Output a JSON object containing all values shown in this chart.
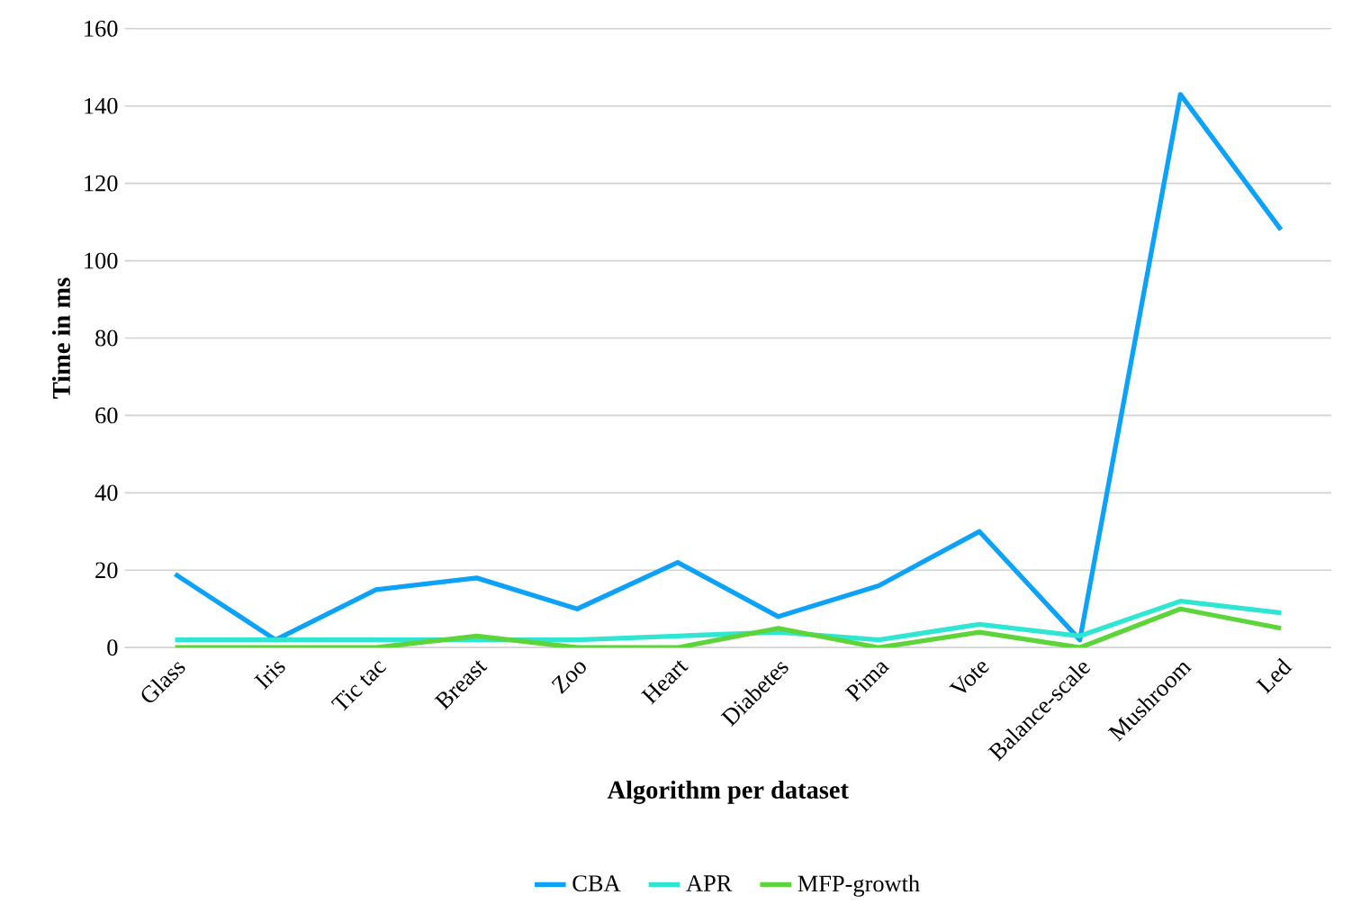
{
  "chart_data": {
    "type": "line",
    "xlabel": "Algorithm per dataset",
    "ylabel": "Time in ms",
    "categories": [
      "Glass",
      "Iris",
      "Tic tac",
      "Breast",
      "Zoo",
      "Heart",
      "Diabetes",
      "Pima",
      "Vote",
      "Balance-scale",
      "Mushroom",
      "Led"
    ],
    "series": [
      {
        "name": "CBA",
        "color": "#0ca2f8",
        "values": [
          19,
          2,
          15,
          18,
          10,
          22,
          8,
          16,
          30,
          2,
          143,
          108
        ]
      },
      {
        "name": "APR",
        "color": "#2ee6d2",
        "values": [
          2,
          2,
          2,
          2,
          2,
          3,
          4,
          2,
          6,
          3,
          12,
          9
        ]
      },
      {
        "name": "MFP-growth",
        "color": "#5dd43a",
        "values": [
          0,
          0,
          0,
          3,
          0,
          0,
          5,
          0,
          4,
          0,
          10,
          5
        ]
      }
    ],
    "ylim": [
      0,
      160
    ],
    "yticks": [
      0,
      20,
      40,
      60,
      80,
      100,
      120,
      140,
      160
    ],
    "grid": "y",
    "legend": "bottom",
    "marker": "none",
    "line_style": "solid"
  }
}
